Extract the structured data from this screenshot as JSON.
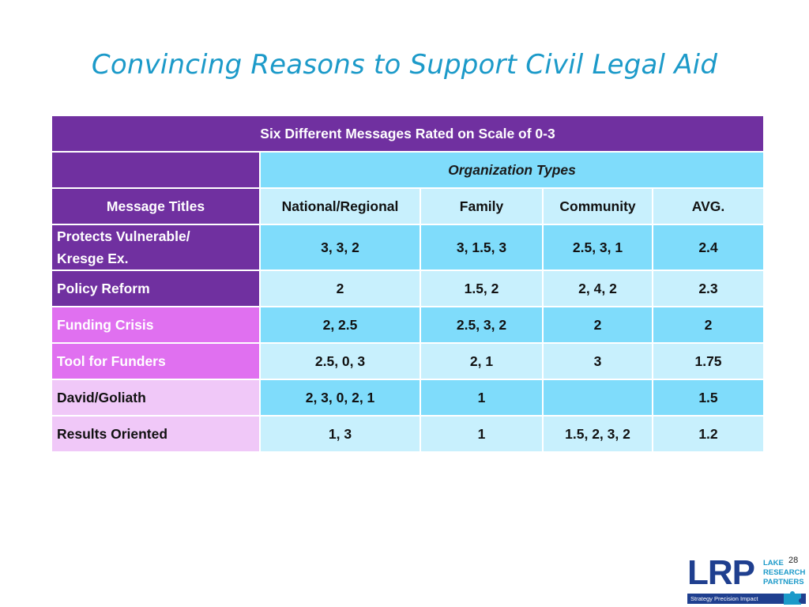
{
  "slide": {
    "title": "Convincing Reasons to Support Civil Legal Aid",
    "page_number": "28"
  },
  "table": {
    "banner": "Six Different Messages Rated on Scale of 0-3",
    "group_header": "Organization Types",
    "message_header": "Message Titles",
    "columns": [
      "National/Regional",
      "Family",
      "Community",
      "AVG."
    ],
    "rows": [
      {
        "label_line1": "Protects Vulnerable/",
        "label_line2": "Kresge Ex.",
        "cells": [
          "3, 3, 2",
          "3, 1.5, 3",
          "2.5, 3, 1",
          "2.4"
        ]
      },
      {
        "label": "Policy Reform",
        "cells": [
          "2",
          "1.5, 2",
          "2, 4, 2",
          "2.3"
        ]
      },
      {
        "label": "Funding Crisis",
        "cells": [
          "2, 2.5",
          "2.5, 3, 2",
          "2",
          "2"
        ]
      },
      {
        "label": "Tool for Funders",
        "cells": [
          "2.5, 0, 3",
          "2, 1",
          "3",
          "1.75"
        ]
      },
      {
        "label": "David/Goliath",
        "cells": [
          "2, 3, 0, 2, 1",
          "1",
          "",
          "1.5"
        ]
      },
      {
        "label": "Results Oriented",
        "cells": [
          "1, 3",
          "1",
          "1.5, 2, 3, 2",
          "1.2"
        ]
      }
    ]
  },
  "logo": {
    "mark": "LRP",
    "words": [
      "LAKE",
      "RESEARCH",
      "PARTNERS"
    ],
    "tagline": "Strategy   Precision   Impact",
    "icon": "puzzle-icon"
  },
  "colors": {
    "title": "#1c9ac9",
    "purple_dark": "#7030a0",
    "purple_mid": "#e070f0",
    "purple_light": "#f0c8f8",
    "cyan_strong": "#7fdcfb",
    "cyan_light": "#c8f0fd",
    "logo_navy": "#1f3f8f"
  }
}
